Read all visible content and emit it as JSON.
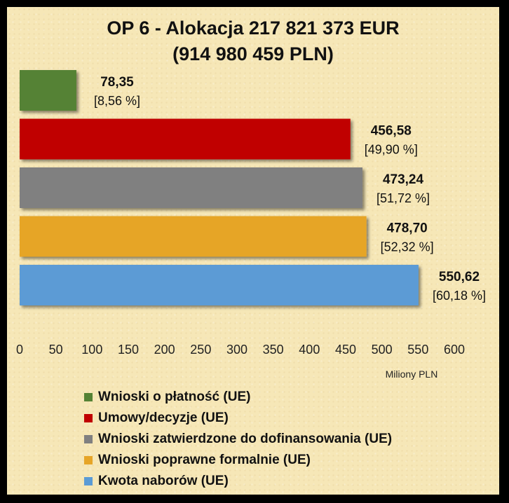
{
  "title": "OP 6  - Alokacja 217 821 373 EUR\n(914 980 459 PLN)",
  "chart_data": {
    "type": "bar",
    "orientation": "horizontal",
    "title": "OP 6  - Alokacja 217 821 373 EUR\n(914 980 459 PLN)",
    "xlabel": "Miliony PLN",
    "ylabel": "",
    "xlim": [
      0,
      600
    ],
    "x_ticks": [
      "0",
      "50",
      "100",
      "150",
      "200",
      "250",
      "300",
      "350",
      "400",
      "450",
      "500",
      "550",
      "600"
    ],
    "grid": false,
    "legend_position": "bottom",
    "bars": [
      {
        "name": "Wnioski o płatność (UE)",
        "value": 78.35,
        "value_label": "78,35",
        "percent_label": "[8,56 %]",
        "color": "#548235"
      },
      {
        "name": "Umowy/decyzje (UE)",
        "value": 456.58,
        "value_label": "456,58",
        "percent_label": "[49,90 %]",
        "color": "#c00000"
      },
      {
        "name": "Wnioski zatwierdzone do dofinansowania (UE)",
        "value": 473.24,
        "value_label": "473,24",
        "percent_label": "[51,72 %]",
        "color": "#808080"
      },
      {
        "name": "Wnioski poprawne formalnie (UE)",
        "value": 478.7,
        "value_label": "478,70",
        "percent_label": "[52,32 %]",
        "color": "#e6a528"
      },
      {
        "name": "Kwota naborów (UE)",
        "value": 550.62,
        "value_label": "550,62",
        "percent_label": "[60,18 %]",
        "color": "#5b9bd5"
      }
    ]
  }
}
